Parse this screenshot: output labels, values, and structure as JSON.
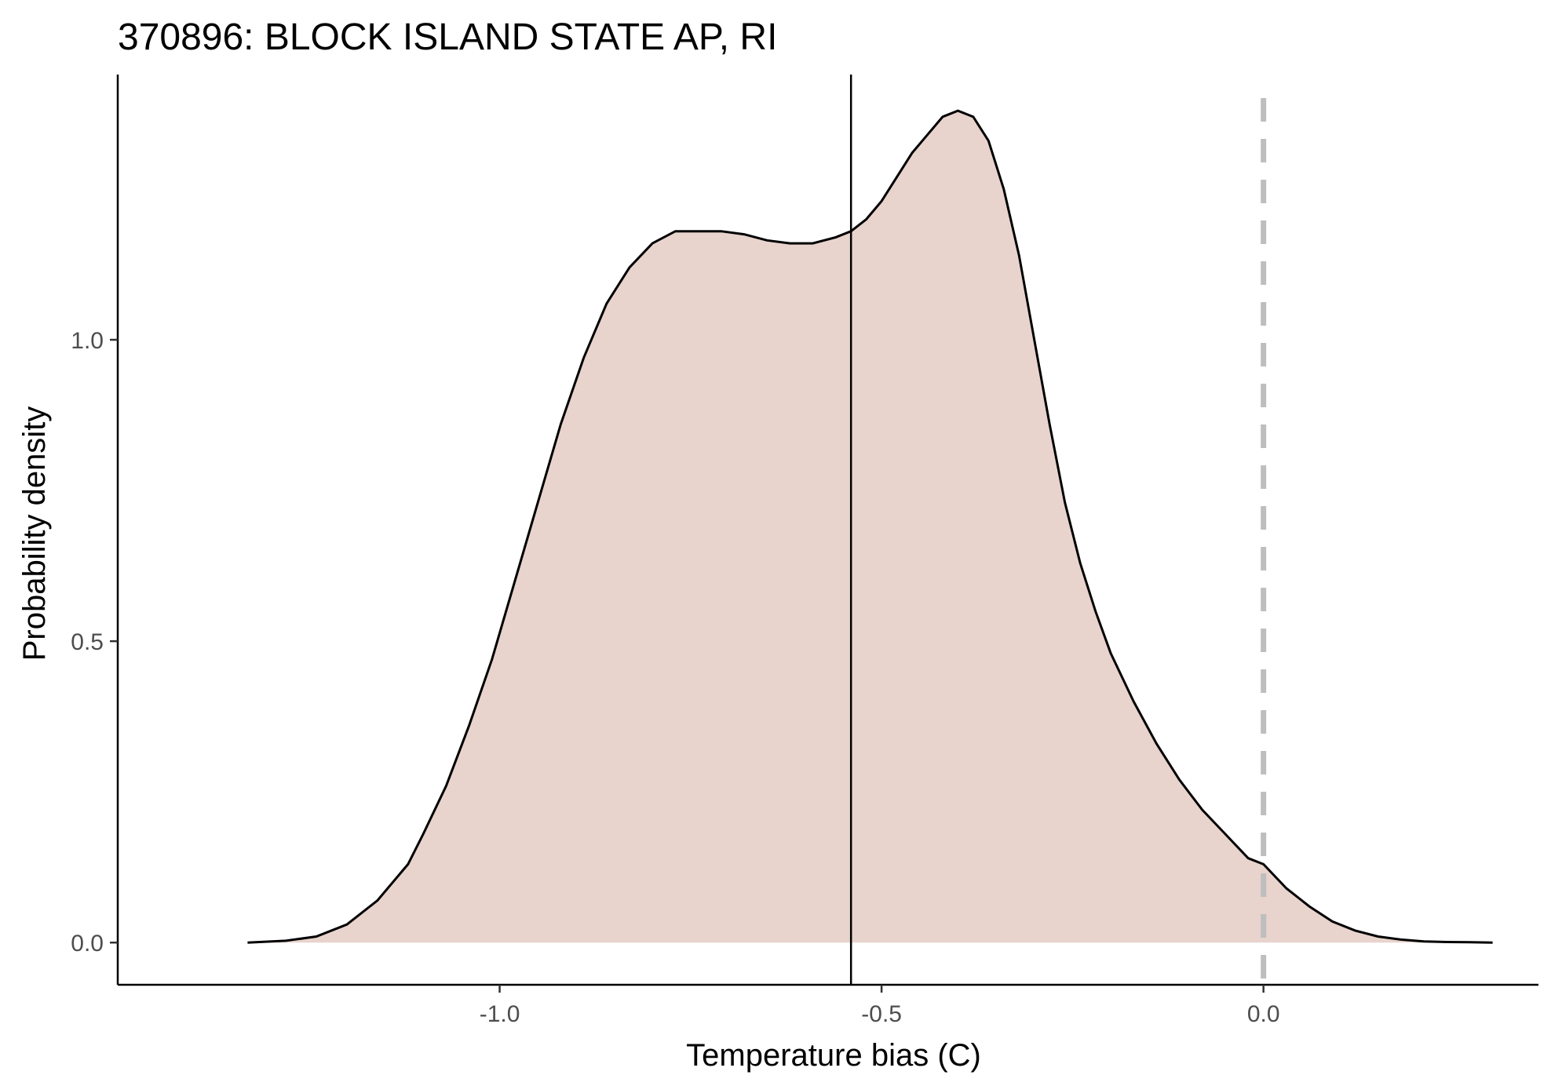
{
  "chart_data": {
    "type": "area",
    "title": "370896: BLOCK ISLAND STATE AP, RI",
    "xlabel": "Temperature bias (C)",
    "ylabel": "Probability density",
    "xlim": [
      -1.5,
      0.36
    ],
    "ylim": [
      -0.07,
      1.44
    ],
    "x_ticks": [
      -1.0,
      -0.5,
      0.0
    ],
    "x_tick_labels": [
      "-1.0",
      "-0.5",
      "0.0"
    ],
    "y_ticks": [
      0.0,
      0.5,
      1.0
    ],
    "y_tick_labels": [
      "0.0",
      "0.5",
      "1.0"
    ],
    "grid": false,
    "fill_color": "#e8d3cd",
    "line_color": "#000000",
    "series": [
      {
        "x": [
          -1.33,
          -1.28,
          -1.24,
          -1.2,
          -1.16,
          -1.12,
          -1.1,
          -1.07,
          -1.04,
          -1.01,
          -0.98,
          -0.95,
          -0.92,
          -0.89,
          -0.86,
          -0.83,
          -0.8,
          -0.77,
          -0.74,
          -0.71,
          -0.68,
          -0.65,
          -0.62,
          -0.59,
          -0.56,
          -0.54,
          -0.52,
          -0.5,
          -0.48,
          -0.46,
          -0.44,
          -0.42,
          -0.4,
          -0.38,
          -0.36,
          -0.34,
          -0.32,
          -0.3,
          -0.28,
          -0.26,
          -0.24,
          -0.22,
          -0.2,
          -0.17,
          -0.14,
          -0.11,
          -0.08,
          -0.05,
          -0.02,
          0.0,
          0.03,
          0.06,
          0.09,
          0.12,
          0.15,
          0.18,
          0.21,
          0.24,
          0.27,
          0.3
        ],
        "y": [
          0.0,
          0.003,
          0.01,
          0.03,
          0.07,
          0.13,
          0.18,
          0.26,
          0.36,
          0.47,
          0.6,
          0.73,
          0.86,
          0.97,
          1.06,
          1.12,
          1.16,
          1.18,
          1.18,
          1.18,
          1.175,
          1.165,
          1.16,
          1.16,
          1.17,
          1.18,
          1.2,
          1.23,
          1.27,
          1.31,
          1.34,
          1.37,
          1.38,
          1.37,
          1.33,
          1.25,
          1.14,
          1.0,
          0.86,
          0.73,
          0.63,
          0.55,
          0.48,
          0.4,
          0.33,
          0.27,
          0.22,
          0.18,
          0.14,
          0.13,
          0.09,
          0.06,
          0.035,
          0.02,
          0.01,
          0.005,
          0.002,
          0.001,
          0.0005,
          0.0
        ]
      }
    ],
    "reference_lines": [
      {
        "axis": "x",
        "value": -0.54,
        "style": "solid",
        "color": "#000000"
      },
      {
        "axis": "x",
        "value": 0.0,
        "style": "dashed",
        "color": "#bebebe"
      }
    ]
  }
}
